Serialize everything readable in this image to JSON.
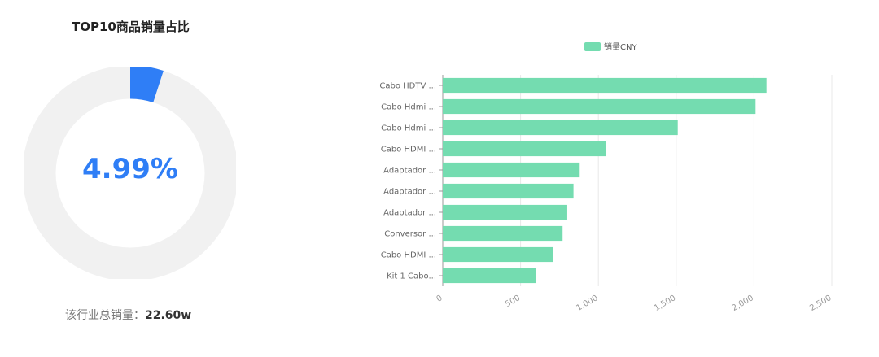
{
  "share_card": {
    "title": "TOP10商品销量占比",
    "percent_text": "4.99%",
    "percent_value": 4.99,
    "total_label": "该行业总销量：",
    "total_value": "22.60w",
    "colors": {
      "accent": "#2f7ef6",
      "track": "#f1f1f1"
    }
  },
  "chart_data": {
    "type": "bar",
    "orientation": "horizontal",
    "categories": [
      "Cabo HDTV ...",
      "Cabo Hdmi ...",
      "Cabo Hdmi ...",
      "Cabo HDMI ...",
      "Adaptador ...",
      "Adaptador ...",
      "Adaptador ...",
      "Conversor ...",
      "Cabo HDMI ...",
      "Kit 1 Cabo..."
    ],
    "series": [
      {
        "name": "销量CNY",
        "values": [
          2080,
          2010,
          1510,
          1050,
          880,
          840,
          800,
          770,
          710,
          600
        ]
      }
    ],
    "xlim": [
      0,
      2500
    ],
    "x_ticks": [
      "0",
      "500",
      "1,000",
      "1,500",
      "2,000",
      "2,500"
    ],
    "legend_position": "top",
    "grid": true,
    "bar_color": "#74dcb0"
  }
}
